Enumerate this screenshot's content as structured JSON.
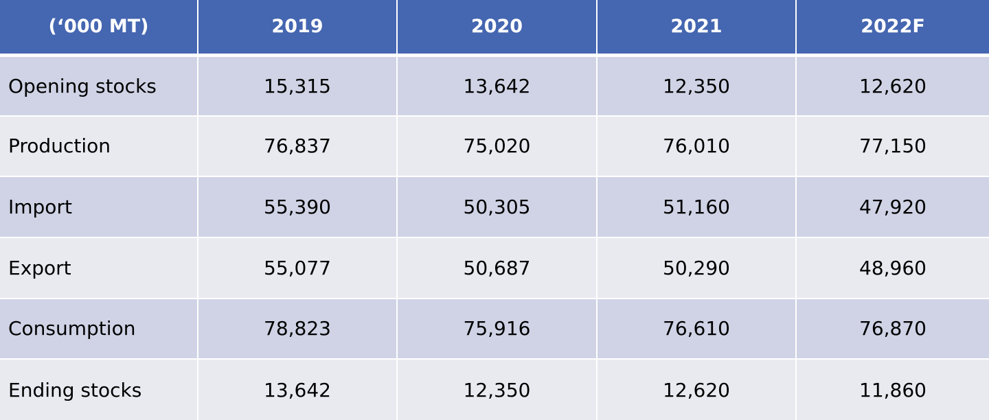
{
  "table": {
    "headers": [
      "(‘000 MT)",
      "2019",
      "2020",
      "2021",
      "2022F"
    ],
    "rows": [
      {
        "label": "Opening stocks",
        "values": [
          "15,315",
          "13,642",
          "12,350",
          "12,620"
        ]
      },
      {
        "label": "Production",
        "values": [
          "76,837",
          "75,020",
          "76,010",
          "77,150"
        ]
      },
      {
        "label": "Import",
        "values": [
          "55,390",
          "50,305",
          "51,160",
          "47,920"
        ]
      },
      {
        "label": "Export",
        "values": [
          "55,077",
          "50,687",
          "50,290",
          "48,960"
        ]
      },
      {
        "label": "Consumption",
        "values": [
          "78,823",
          "75,916",
          "76,610",
          "76,870"
        ]
      },
      {
        "label": "Ending stocks",
        "values": [
          "13,642",
          "12,350",
          "12,620",
          "11,860"
        ]
      }
    ]
  },
  "colors": {
    "header_bg": "#4566b0",
    "row_odd": "#cfd3e5",
    "row_even": "#e9eaf0"
  }
}
